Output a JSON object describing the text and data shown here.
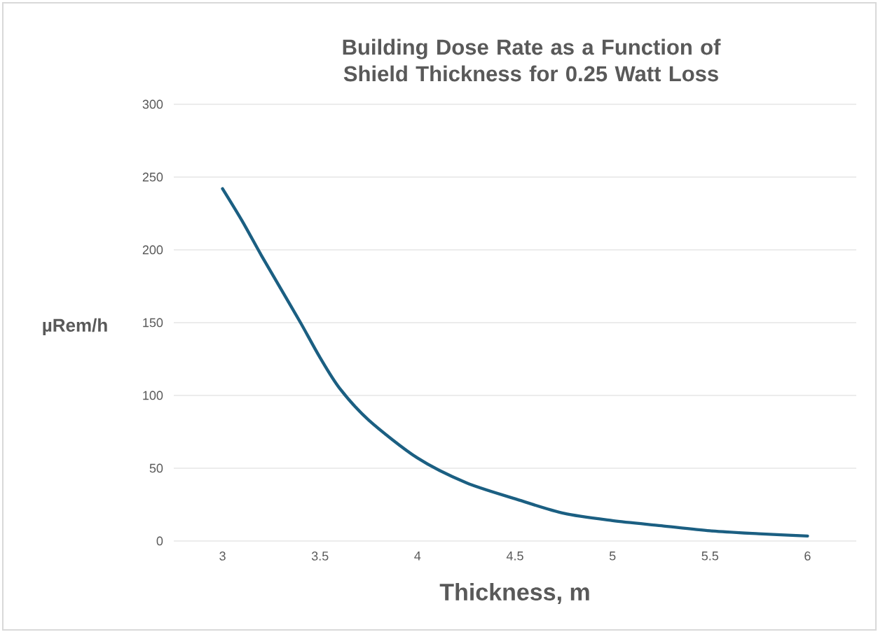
{
  "chart_data": {
    "type": "line",
    "title": "Building Dose Rate as a Function of Shield Thickness for 0.25 Watt Loss",
    "xlabel": "Thickness, m",
    "ylabel": "µRem/h",
    "x": [
      3,
      3.1,
      3.2,
      3.3,
      3.4,
      3.5,
      3.6,
      3.75,
      4,
      4.25,
      4.5,
      4.75,
      5,
      5.25,
      5.5,
      5.75,
      6
    ],
    "values": [
      242,
      220,
      196,
      173,
      150,
      126,
      105,
      83,
      57,
      40,
      29,
      19,
      14,
      10.5,
      7,
      5,
      3.4
    ],
    "color": "#1b5f82",
    "xlim": [
      2.75,
      6.25
    ],
    "xticks": [
      3,
      3.5,
      4,
      4.5,
      5,
      5.5,
      6
    ],
    "ylim": [
      0,
      300
    ],
    "yticks": [
      0,
      50,
      100,
      150,
      200,
      250,
      300
    ],
    "grid": "y",
    "marker": "none",
    "line_style": "solid"
  }
}
